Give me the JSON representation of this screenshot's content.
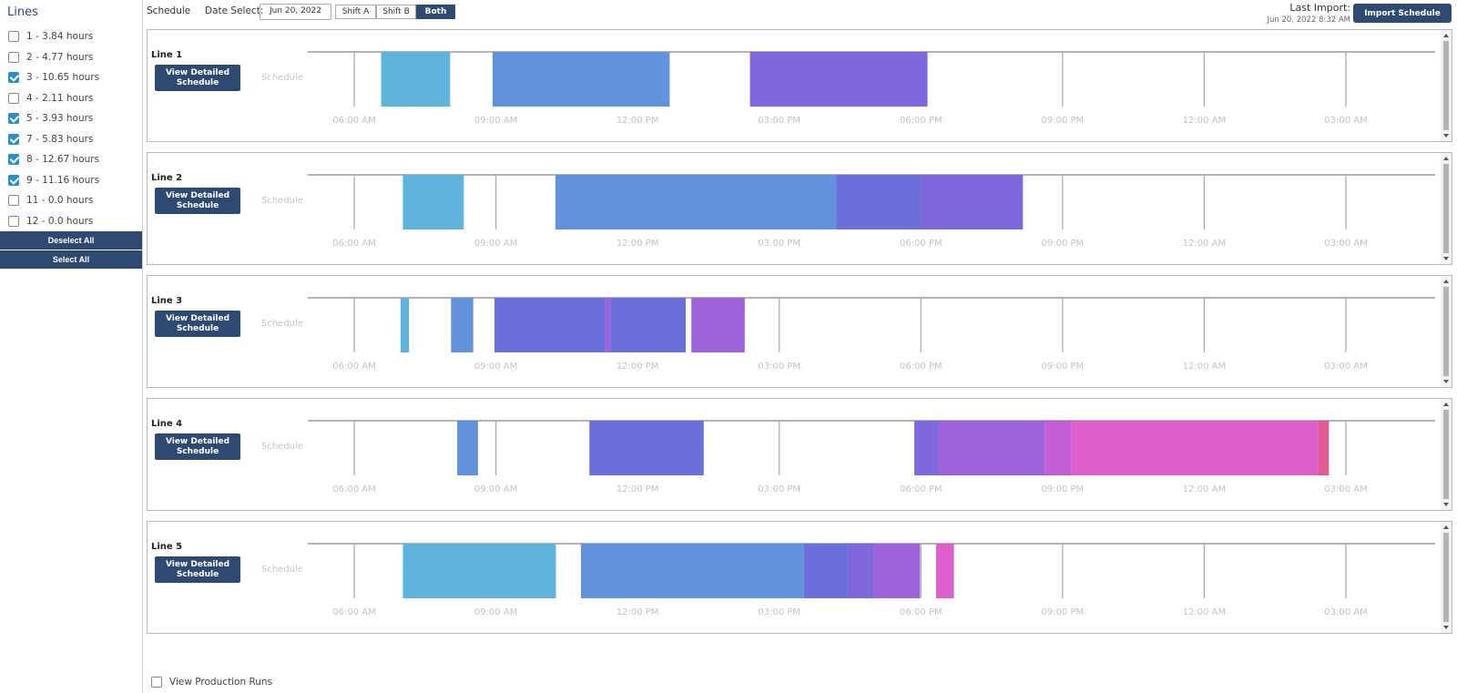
{
  "sidebar": {
    "title": "Lines",
    "items": [
      {
        "label": "1 -  3.84 hours",
        "checked": false
      },
      {
        "label": "2 -  4.77 hours",
        "checked": false
      },
      {
        "label": "3 -  10.65 hours",
        "checked": true
      },
      {
        "label": "4 -  2.11 hours",
        "checked": false
      },
      {
        "label": "5 -  3.93 hours",
        "checked": true
      },
      {
        "label": "7 -  5.83 hours",
        "checked": true
      },
      {
        "label": "8 -  12.67 hours",
        "checked": true
      },
      {
        "label": "9 -  11.16 hours",
        "checked": true
      },
      {
        "label": "11 -  0.0 hours",
        "checked": false
      },
      {
        "label": "12 -  0.0 hours",
        "checked": false
      }
    ],
    "deselect_all": "Deselect All",
    "select_all": "Select All"
  },
  "toolbar": {
    "label": "Schedule",
    "date_label": "Date Select:",
    "date_value": "Jun 20, 2022",
    "shift_a": "Shift A",
    "shift_b": "Shift B",
    "both": "Both",
    "last_import_label": "Last Import:",
    "last_import_date": "Jun 20, 2022 8:32 AM",
    "import_button": "Import Schedule"
  },
  "colors": {
    "accent": "#2f4a70",
    "checkbox": "#2a8fc6",
    "gantt_palette": [
      "#5fb4dc",
      "#6392dc",
      "#6a6fdc",
      "#7f67dc",
      "#9f62da",
      "#c25ed6",
      "#dc5fcb",
      "#e05a94"
    ]
  },
  "timeline": {
    "ticks": [
      "06:00 AM",
      "09:00 AM",
      "12:00 PM",
      "03:00 PM",
      "06:00 PM",
      "09:00 PM",
      "12:00 AM",
      "03:00 AM"
    ],
    "start_hour": 5,
    "end_hour": 28.8
  },
  "schedule_label": "Schedule",
  "view_detail_label": "View Detailed Schedule",
  "panels": [
    {
      "name": "Line 1",
      "blocks": [
        {
          "start": 6.57,
          "end": 8.03,
          "color": "#5fb4dc"
        },
        {
          "start": 8.93,
          "end": 12.68,
          "color": "#6392dc"
        },
        {
          "start": 14.38,
          "end": 18.14,
          "color": "#7f67dc"
        }
      ]
    },
    {
      "name": "Line 2",
      "blocks": [
        {
          "start": 7.03,
          "end": 8.32,
          "color": "#5fb4dc"
        },
        {
          "start": 10.26,
          "end": 16.21,
          "color": "#6392dc"
        },
        {
          "start": 16.21,
          "end": 18.0,
          "color": "#6a6fdc"
        },
        {
          "start": 18.0,
          "end": 20.16,
          "color": "#7f67dc"
        }
      ]
    },
    {
      "name": "Line 3",
      "blocks": [
        {
          "start": 6.98,
          "end": 7.16,
          "color": "#5fb4dc"
        },
        {
          "start": 8.05,
          "end": 8.52,
          "color": "#6392dc"
        },
        {
          "start": 8.97,
          "end": 11.32,
          "color": "#6a6fdc"
        },
        {
          "start": 11.32,
          "end": 11.42,
          "color": "#9f62da"
        },
        {
          "start": 11.42,
          "end": 13.02,
          "color": "#6a6fdc"
        },
        {
          "start": 13.14,
          "end": 14.27,
          "color": "#9f62da"
        }
      ]
    },
    {
      "name": "Line 4",
      "blocks": [
        {
          "start": 8.18,
          "end": 8.62,
          "color": "#6392dc"
        },
        {
          "start": 10.98,
          "end": 13.4,
          "color": "#6a6fdc"
        },
        {
          "start": 17.86,
          "end": 18.38,
          "color": "#7f67dc"
        },
        {
          "start": 18.38,
          "end": 20.62,
          "color": "#9f62da"
        },
        {
          "start": 20.62,
          "end": 21.18,
          "color": "#c25ed6"
        },
        {
          "start": 21.18,
          "end": 26.42,
          "color": "#dc5fcb"
        },
        {
          "start": 26.42,
          "end": 26.64,
          "color": "#e05a94"
        }
      ]
    },
    {
      "name": "Line 5",
      "blocks": [
        {
          "start": 7.03,
          "end": 10.27,
          "color": "#5fb4dc"
        },
        {
          "start": 10.8,
          "end": 15.52,
          "color": "#6392dc"
        },
        {
          "start": 15.52,
          "end": 16.45,
          "color": "#6a6fdc"
        },
        {
          "start": 16.45,
          "end": 17.0,
          "color": "#7f67dc"
        },
        {
          "start": 17.0,
          "end": 17.98,
          "color": "#9f62da"
        },
        {
          "start": 18.32,
          "end": 18.7,
          "color": "#dc5fcb"
        }
      ]
    }
  ],
  "production_runs_label": "View Production Runs"
}
